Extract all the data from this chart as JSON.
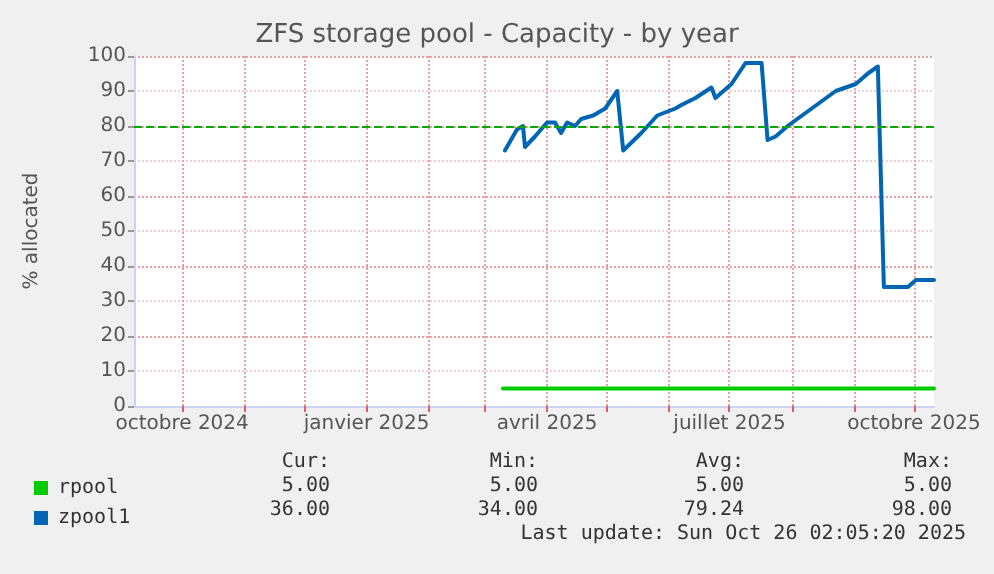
{
  "chart_data": {
    "type": "line",
    "title": "ZFS storage pool - Capacity - by year",
    "ylabel": "% allocated",
    "xlim": [
      "2024-09-07",
      "2025-10-11"
    ],
    "xticks": [
      {
        "value": "2024-10-01",
        "label": "octobre 2024"
      },
      {
        "value": "2024-11-01",
        "label": null
      },
      {
        "value": "2024-12-01",
        "label": null
      },
      {
        "value": "2025-01-01",
        "label": "janvier 2025"
      },
      {
        "value": "2025-02-01",
        "label": null
      },
      {
        "value": "2025-03-01",
        "label": null
      },
      {
        "value": "2025-04-01",
        "label": "avril 2025"
      },
      {
        "value": "2025-05-01",
        "label": null
      },
      {
        "value": "2025-06-01",
        "label": null
      },
      {
        "value": "2025-07-01",
        "label": "juillet 2025"
      },
      {
        "value": "2025-08-01",
        "label": null
      },
      {
        "value": "2025-09-01",
        "label": null
      },
      {
        "value": "2025-10-01",
        "label": "octobre 2025"
      }
    ],
    "ylim": [
      0,
      100
    ],
    "yticks": [
      0,
      10,
      20,
      30,
      40,
      50,
      60,
      70,
      80,
      90,
      100
    ],
    "grid": true,
    "legend": "bottom left",
    "marker": "none",
    "line_style": "solid",
    "ref_lines": [
      {
        "axis": "y",
        "value": 80,
        "color": "#00aa00",
        "line_style": "dashed"
      }
    ],
    "series": [
      {
        "name": "rpool",
        "color": "#00cc00",
        "x": [
          "2025-03-10",
          "2025-10-11"
        ],
        "values": [
          5,
          5
        ]
      },
      {
        "name": "zpool1",
        "color": "#0066b3",
        "x": [
          "2025-03-11",
          "2025-03-14",
          "2025-03-17",
          "2025-03-20",
          "2025-03-21",
          "2025-03-26",
          "2025-04-01",
          "2025-04-05",
          "2025-04-08",
          "2025-04-11",
          "2025-04-15",
          "2025-04-18",
          "2025-04-24",
          "2025-04-30",
          "2025-05-06",
          "2025-05-09",
          "2025-05-18",
          "2025-05-26",
          "2025-06-04",
          "2025-06-07",
          "2025-06-14",
          "2025-06-22",
          "2025-06-24",
          "2025-07-02",
          "2025-07-09",
          "2025-07-17",
          "2025-07-20",
          "2025-07-24",
          "2025-07-30",
          "2025-08-11",
          "2025-08-23",
          "2025-09-02",
          "2025-09-08",
          "2025-09-13",
          "2025-09-16",
          "2025-09-28",
          "2025-10-02",
          "2025-10-11"
        ],
        "values": [
          73,
          76,
          79,
          80,
          74,
          77,
          81,
          81,
          78,
          81,
          80,
          82,
          83,
          85,
          90,
          73,
          78,
          83,
          85,
          86,
          88,
          91,
          88,
          92,
          98,
          98,
          76,
          77,
          80,
          85,
          90,
          92,
          95,
          97,
          34,
          34,
          36,
          36
        ]
      }
    ],
    "annotations": [
      "Cur:",
      "Min:",
      "Avg:",
      "Max:",
      "5.00",
      "5.00",
      "5.00",
      "5.00",
      "36.00",
      "34.00",
      "79.24",
      "98.00",
      "Last update: Sun Oct 26 02:05:20 2025"
    ]
  }
}
